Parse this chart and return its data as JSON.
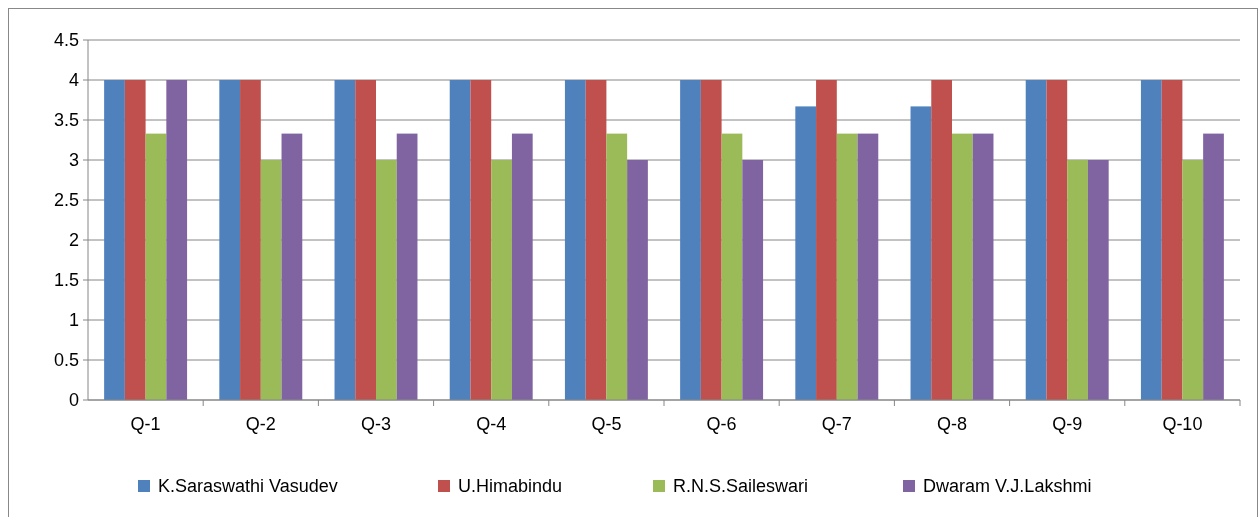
{
  "chart_data": {
    "type": "bar",
    "categories": [
      "Q-1",
      "Q-2",
      "Q-3",
      "Q-4",
      "Q-5",
      "Q-6",
      "Q-7",
      "Q-8",
      "Q-9",
      "Q-10"
    ],
    "series": [
      {
        "name": "K.Saraswathi Vasudev",
        "color": "#4f81bd",
        "values": [
          4,
          4,
          4,
          4,
          4,
          4,
          3.67,
          3.67,
          4,
          4
        ]
      },
      {
        "name": "U.Himabindu",
        "color": "#c0504d",
        "values": [
          4,
          4,
          4,
          4,
          4,
          4,
          4,
          4,
          4,
          4
        ]
      },
      {
        "name": "R.N.S.Saileswari",
        "color": "#9bbb59",
        "values": [
          3.33,
          3,
          3,
          3,
          3.33,
          3.33,
          3.33,
          3.33,
          3,
          3
        ]
      },
      {
        "name": "Dwaram V.J.Lakshmi",
        "color": "#8064a2",
        "values": [
          4,
          3.33,
          3.33,
          3.33,
          3,
          3,
          3.33,
          3.33,
          3,
          3.33
        ]
      }
    ],
    "ylim": [
      0,
      4.5
    ],
    "yticks": [
      0,
      0.5,
      1,
      1.5,
      2,
      2.5,
      3,
      3.5,
      4,
      4.5
    ],
    "grid": "y",
    "legend": "bottom"
  }
}
